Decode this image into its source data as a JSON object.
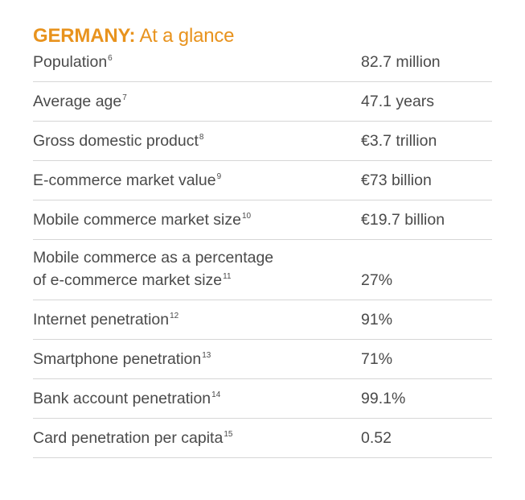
{
  "title": {
    "country": "GERMANY:",
    "subtitle": " At a glance"
  },
  "rows": [
    {
      "label": "Population",
      "note": "6",
      "value": "82.7 million"
    },
    {
      "label": "Average age",
      "note": "7",
      "value": "47.1 years"
    },
    {
      "label": "Gross domestic product",
      "note": "8",
      "value": "€3.7 trillion"
    },
    {
      "label": "E-commerce market value",
      "note": "9",
      "value": "€73 billion"
    },
    {
      "label": "Mobile commerce market size",
      "note": "10",
      "value": "€19.7 billion"
    },
    {
      "label_line1": "Mobile commerce as a percentage",
      "label_line2": "of e-commerce market size",
      "note": "11",
      "value": "27%"
    },
    {
      "label": "Internet penetration",
      "note": "12",
      "value": "91%"
    },
    {
      "label": "Smartphone penetration",
      "note": "13",
      "value": "71%"
    },
    {
      "label": "Bank account penetration",
      "note": "14",
      "value": "99.1%"
    },
    {
      "label": "Card penetration per capita",
      "note": "15",
      "value": "0.52"
    }
  ],
  "colors": {
    "accent": "#e8931e",
    "text": "#4a4a4a",
    "divider": "#d6d6d6"
  }
}
